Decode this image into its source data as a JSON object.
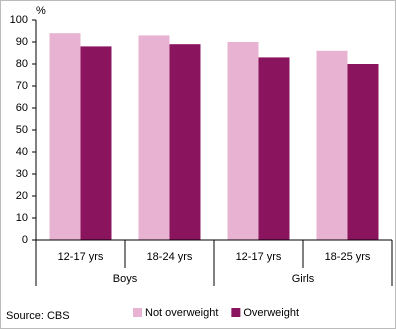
{
  "chart_data": {
    "type": "bar",
    "y_label": "%",
    "groups": [
      {
        "name": "Boys",
        "categories": [
          "12-17 yrs",
          "18-24 yrs"
        ]
      },
      {
        "name": "Girls",
        "categories": [
          "12-17 yrs",
          "18-25 yrs"
        ]
      }
    ],
    "series": [
      {
        "name": "Not overweight",
        "color": "#e8b3d2",
        "values": [
          94,
          93,
          90,
          86
        ]
      },
      {
        "name": "Overweight",
        "color": "#8b145f",
        "values": [
          88,
          89,
          83,
          80
        ]
      }
    ],
    "ylim": [
      0,
      100
    ],
    "yticks": [
      0,
      10,
      20,
      30,
      40,
      50,
      60,
      70,
      80,
      90,
      100
    ],
    "source": "Source: CBS"
  }
}
